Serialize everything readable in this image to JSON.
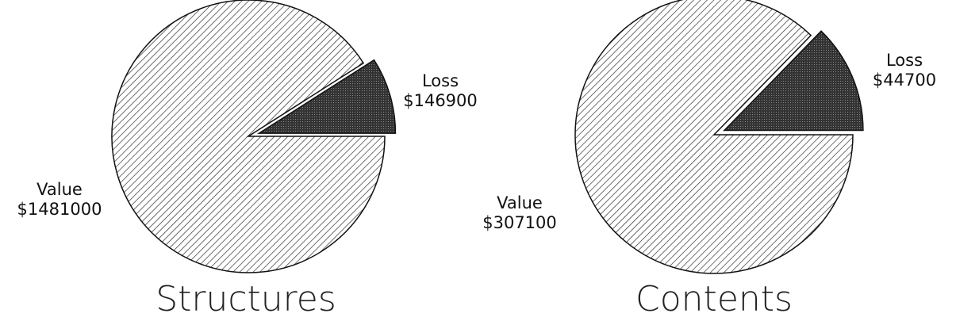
{
  "chart_data": [
    {
      "type": "pie",
      "title": "Structures",
      "categories": [
        "Loss",
        "Value"
      ],
      "values": [
        146900,
        1481000
      ],
      "value_labels": [
        "$146900",
        "$1481000"
      ]
    },
    {
      "type": "pie",
      "title": "Contents",
      "categories": [
        "Loss",
        "Value"
      ],
      "values": [
        44700,
        307100
      ],
      "value_labels": [
        "$44700",
        "$307100"
      ]
    }
  ]
}
